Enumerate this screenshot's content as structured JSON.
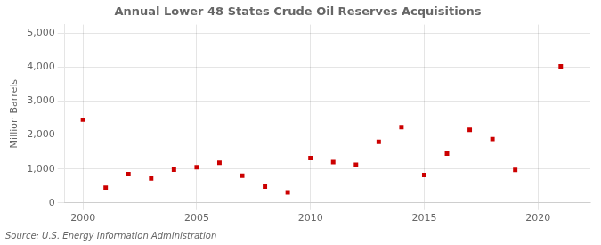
{
  "chart_data": {
    "type": "scatter",
    "title": "Annual Lower 48 States Crude Oil Reserves Acquisitions",
    "ylabel": "Million Barrels",
    "source": "Source: U.S. Energy Information Administration",
    "x": [
      2000,
      2001,
      2002,
      2003,
      2004,
      2005,
      2006,
      2007,
      2008,
      2009,
      2010,
      2011,
      2012,
      2013,
      2014,
      2015,
      2016,
      2017,
      2018,
      2019,
      2021
    ],
    "values": [
      2450,
      450,
      850,
      720,
      980,
      1050,
      1180,
      800,
      480,
      310,
      1320,
      1200,
      1120,
      1800,
      2230,
      820,
      1450,
      2150,
      1880,
      970,
      4020
    ],
    "color": "#cc0000",
    "marker": "square",
    "xlim": [
      1999.2,
      2022.3
    ],
    "ylim": [
      0,
      5250
    ],
    "xticks": [
      2000,
      2005,
      2010,
      2015,
      2020
    ],
    "yticks": [
      0,
      {
        "value": 1000,
        "label": "1,000"
      },
      {
        "value": 2000,
        "label": "2,000"
      },
      {
        "value": 3000,
        "label": "3,000"
      },
      {
        "value": 4000,
        "label": "4,000"
      },
      {
        "value": 5000,
        "label": "5,000"
      }
    ],
    "grid": true
  }
}
